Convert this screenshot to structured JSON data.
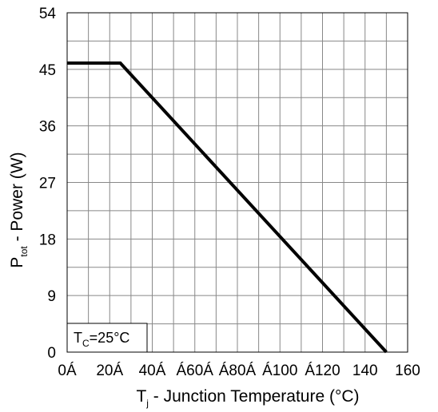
{
  "chart_data": {
    "type": "line",
    "title": "",
    "xlabel_main": "T",
    "xlabel_sub": "j",
    "xlabel_rest": " - Junction Temperature (°C)",
    "ylabel_main": "P",
    "ylabel_sub": "tot",
    "ylabel_rest": " - Power (W)",
    "xlim": [
      0,
      160
    ],
    "ylim": [
      0,
      54
    ],
    "x_ticks": [
      0,
      20,
      40,
      60,
      80,
      100,
      120,
      140,
      160
    ],
    "x_tick_labels": [
      "0Á",
      "20Á",
      "40Á",
      "Á60Á",
      "Á80Á",
      "Á100",
      "Á120",
      "140",
      "160"
    ],
    "y_ticks": [
      0,
      9,
      18,
      27,
      36,
      45,
      54
    ],
    "y_tick_labels": [
      "0",
      "9",
      "18",
      "27",
      "36",
      "45",
      "54"
    ],
    "grid": true,
    "grid_x_step": 10,
    "grid_y_step": 4.5,
    "series": [
      {
        "x": [
          0,
          25,
          150
        ],
        "y": [
          46,
          46,
          0
        ]
      }
    ],
    "annotation": {
      "main": "T",
      "sub": "C",
      "rest": "=25°C"
    }
  }
}
